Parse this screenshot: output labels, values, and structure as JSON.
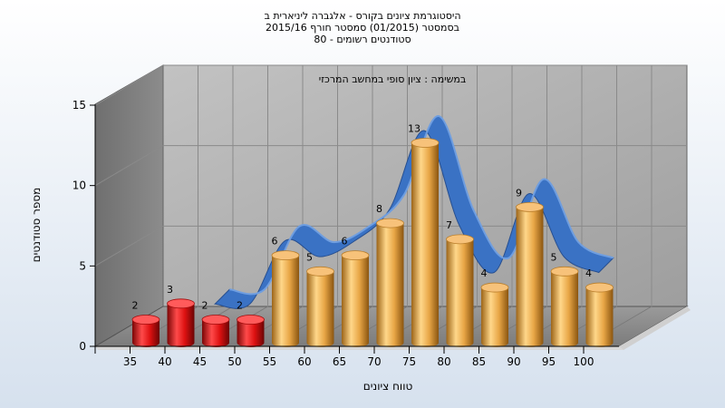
{
  "chart_data": {
    "type": "bar",
    "title_lines": [
      "היסטוגרמת ציונים בקורס - אלגברה ליניארית ב",
      "בסמסטר  (01/2015)  סמסטר חורף  2015/16",
      "סטודנטים רשומים - 80"
    ],
    "subtitle": "במשימה : ציון סופי במחשב המרכזי",
    "xlabel": "טווח ציונים",
    "ylabel": "מספר סטודנטים",
    "categories": [
      "35",
      "40",
      "45",
      "50",
      "55",
      "60",
      "65",
      "70",
      "75",
      "80",
      "85",
      "90",
      "95",
      "100"
    ],
    "values": [
      2,
      3,
      2,
      2,
      6,
      5,
      6,
      8,
      13,
      7,
      4,
      9,
      5,
      4
    ],
    "y_ticks": [
      "0",
      "5",
      "10",
      "15"
    ],
    "ylim": [
      0,
      15
    ],
    "fail_color": "#dd1111",
    "pass_color": "#e8a646",
    "curve_color": "#3a72c4",
    "fail_threshold": 55,
    "grid": true
  }
}
